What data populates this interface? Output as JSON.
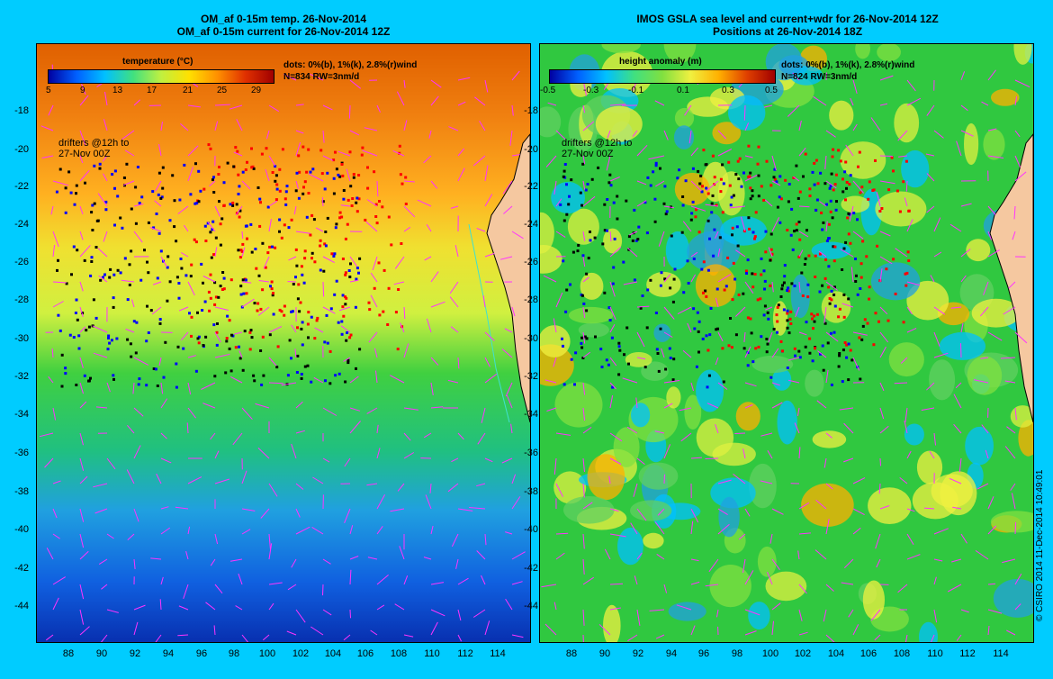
{
  "left": {
    "title1": "OM_af 0-15m temp. 26-Nov-2014",
    "title2": "OM_af 0-15m current for 26-Nov-2014 12Z",
    "colorbar_title": "temperature (°C)",
    "colorbar_ticks": [
      "5",
      "9",
      "13",
      "17",
      "21",
      "25",
      "29"
    ],
    "legend1": "dots: 0%(b), 1%(k), 2.8%(r)wind",
    "legend2": "N=834 RW=3nm/d",
    "drifters1": "drifters @12h to",
    "drifters2": "27-Nov 00Z"
  },
  "right": {
    "title1": "IMOS GSLA sea level and current+wdr for 26-Nov-2014 12Z",
    "title2": "Positions at 26-Nov-2014 18Z",
    "colorbar_title": "height anomaly (m)",
    "colorbar_ticks": [
      "-0.5",
      "-0.3",
      "-0.1",
      "0.1",
      "0.3",
      "0.5"
    ],
    "legend1": "dots: 0%(b), 1%(k), 2.8%(r)wind",
    "legend2": "N=824 RW=3nm/d",
    "drifters1": "drifters @12h to",
    "drifters2": "27-Nov 00Z"
  },
  "y_ticks": [
    "-18",
    "-20",
    "-22",
    "-24",
    "-26",
    "-28",
    "-30",
    "-32",
    "-34",
    "-36",
    "-38",
    "-40",
    "-42",
    "-44"
  ],
  "x_ticks": [
    "88",
    "90",
    "92",
    "94",
    "96",
    "98",
    "100",
    "102",
    "104",
    "106",
    "108",
    "110",
    "112",
    "114"
  ],
  "copyright": "© CSIRO 2014   11-Dec-2014 10:49:01",
  "colors": {
    "background": "#00ccff",
    "land": "#f5c8a0",
    "vectors": "#ff33ff",
    "coast": "#40e0d0"
  }
}
